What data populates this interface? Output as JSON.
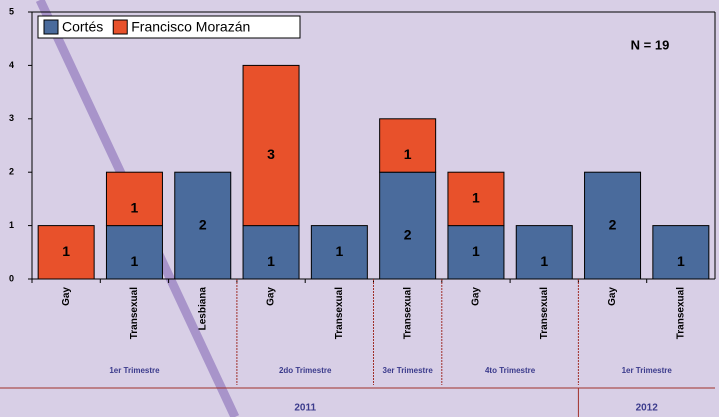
{
  "chart_data": {
    "type": "stacked_bar",
    "annotation": "N = 19",
    "categories": [
      "Gay",
      "Transexual",
      "Lesbiana",
      "Gay",
      "Transexual",
      "Transexual",
      "Gay",
      "Transexual",
      "Gay",
      "Transexual"
    ],
    "series": [
      {
        "name": "Cortés",
        "color": "#4a6b9c",
        "values": [
          0,
          1,
          2,
          1,
          1,
          2,
          1,
          1,
          2,
          1
        ]
      },
      {
        "name": "Francisco Morazán",
        "color": "#e8512b",
        "values": [
          1,
          1,
          0,
          3,
          0,
          1,
          1,
          0,
          0,
          0
        ]
      }
    ],
    "groups": [
      {
        "label": "1er Trimestre",
        "span": 3
      },
      {
        "label": "2do Trimestre",
        "span": 2
      },
      {
        "label": "3er Trimestre",
        "span": 1
      },
      {
        "label": "4to Trimestre",
        "span": 2
      },
      {
        "label": "1er Trimestre",
        "span": 2
      }
    ],
    "years": [
      {
        "label": "2011",
        "span": 8
      },
      {
        "label": "2012",
        "span": 2
      }
    ],
    "ylim": [
      0,
      5
    ],
    "yticks": [
      0,
      1,
      2,
      3,
      4,
      5
    ]
  }
}
